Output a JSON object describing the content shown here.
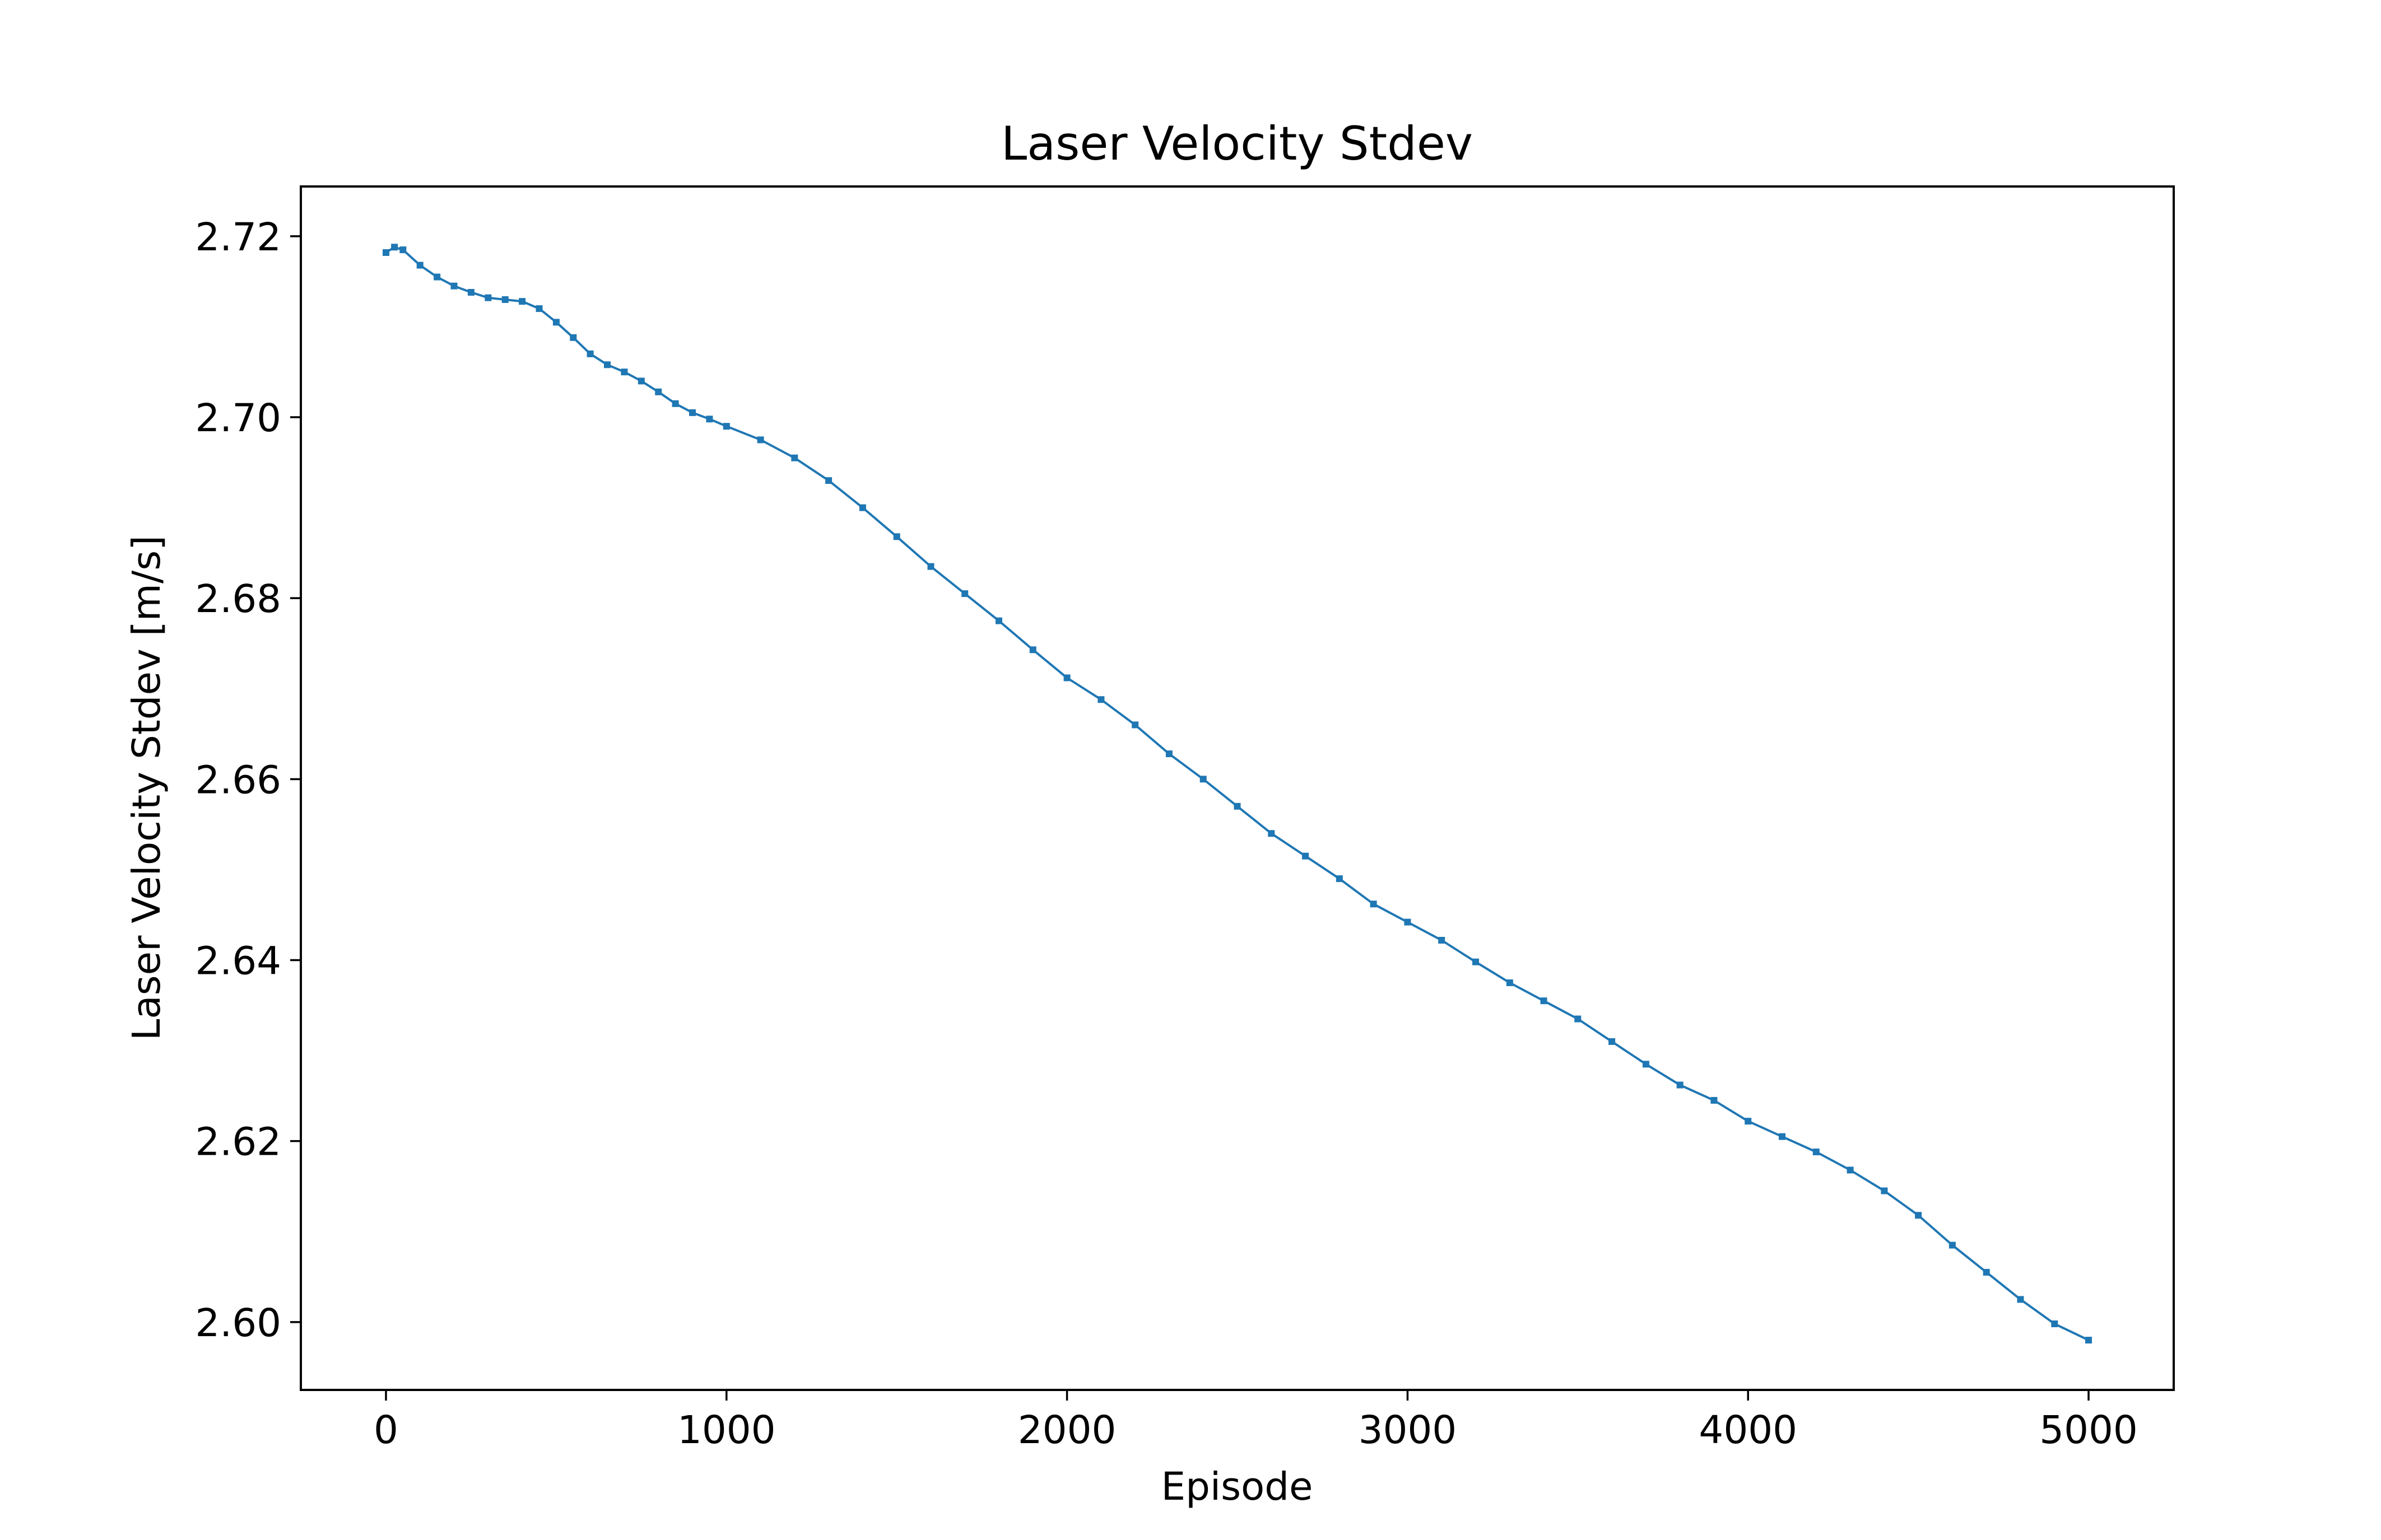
{
  "chart_data": {
    "type": "line",
    "title": "Laser Velocity Stdev",
    "xlabel": "Episode",
    "ylabel": "Laser Velocity Stdev [m/s]",
    "xlim": [
      -250,
      5250
    ],
    "ylim": [
      2.5925,
      2.7255
    ],
    "xticks": [
      0,
      1000,
      2000,
      3000,
      4000,
      5000
    ],
    "xtick_labels": [
      "0",
      "1000",
      "2000",
      "3000",
      "4000",
      "5000"
    ],
    "yticks": [
      2.6,
      2.62,
      2.64,
      2.66,
      2.68,
      2.7,
      2.72
    ],
    "ytick_labels": [
      "2.60",
      "2.62",
      "2.64",
      "2.66",
      "2.68",
      "2.70",
      "2.72"
    ],
    "grid": false,
    "series": [
      {
        "color": "#1f77b4",
        "marker": "square",
        "x": [
          0,
          25,
          50,
          100,
          150,
          200,
          250,
          300,
          350,
          400,
          450,
          500,
          550,
          600,
          650,
          700,
          750,
          800,
          850,
          900,
          950,
          1000,
          1100,
          1200,
          1300,
          1400,
          1500,
          1600,
          1700,
          1800,
          1900,
          2000,
          2100,
          2200,
          2300,
          2400,
          2500,
          2600,
          2700,
          2800,
          2900,
          3000,
          3100,
          3200,
          3300,
          3400,
          3500,
          3600,
          3700,
          3800,
          3900,
          4000,
          4100,
          4200,
          4300,
          4400,
          4500,
          4600,
          4700,
          4800,
          4900,
          5000
        ],
        "y": [
          2.7182,
          2.7188,
          2.7185,
          2.7168,
          2.7155,
          2.7145,
          2.7138,
          2.7132,
          2.713,
          2.7128,
          2.712,
          2.7105,
          2.7088,
          2.707,
          2.7058,
          2.705,
          2.704,
          2.7028,
          2.7015,
          2.7005,
          2.6998,
          2.699,
          2.6975,
          2.6955,
          2.693,
          2.69,
          2.6868,
          2.6835,
          2.6805,
          2.6775,
          2.6743,
          2.6712,
          2.6688,
          2.666,
          2.6628,
          2.66,
          2.657,
          2.654,
          2.6515,
          2.649,
          2.6462,
          2.6442,
          2.6422,
          2.6398,
          2.6375,
          2.6355,
          2.6335,
          2.631,
          2.6285,
          2.6262,
          2.6245,
          2.6222,
          2.6205,
          2.6188,
          2.6168,
          2.6145,
          2.6118,
          2.6085,
          2.6055,
          2.6025,
          2.5998,
          2.598
        ]
      }
    ]
  }
}
